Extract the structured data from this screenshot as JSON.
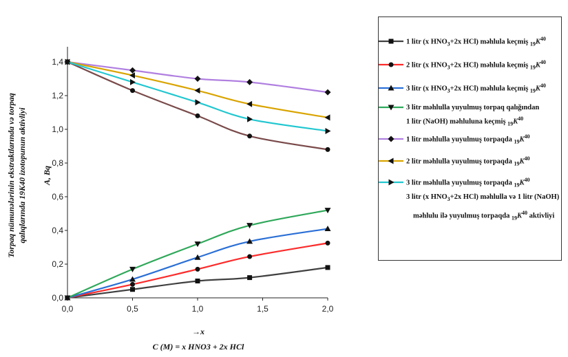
{
  "chart_data": {
    "type": "line",
    "xlabel_arrow": "→x",
    "xlabel_formula": "C (M) = x HNO3 + 2x HCl",
    "ylabel_lines": [
      "Torpaq nümunələrinin ekstraktlarında və torpaq",
      "qalıqlarında 19K40 izotopunun aktivliyi"
    ],
    "ylabel_unit": "A, Bq",
    "x_ticks": [
      "0,0",
      "0,5",
      "1,0",
      "1,5",
      "2,0"
    ],
    "y_ticks": [
      "0,0",
      "0,2",
      "0,4",
      "0,6",
      "0,8",
      "1,0",
      "1,2",
      "1,4"
    ],
    "xlim": [
      0,
      2
    ],
    "ylim": [
      0,
      1.4
    ],
    "x": [
      0,
      0.5,
      1.0,
      1.4,
      2.0
    ],
    "series": [
      {
        "label": "1 litr (x HNO3+2x HCl) məhlula keçmiş 19K40",
        "color": "#404040",
        "marker": "square",
        "values": [
          0.0,
          0.05,
          0.1,
          0.12,
          0.18
        ]
      },
      {
        "label": "2 litr (x HNO3+2x HCl) məhlula keçmiş 19K40",
        "color": "#ff2a2a",
        "marker": "circle",
        "values": [
          0.0,
          0.08,
          0.17,
          0.245,
          0.325
        ]
      },
      {
        "label": "3 litr (x HNO3+2x HCl) məhlula keçmiş 19K40",
        "color": "#2a6fd6",
        "marker": "triangle-up",
        "values": [
          0.0,
          0.11,
          0.24,
          0.335,
          0.41
        ]
      },
      {
        "label": "3 litr məhlulla yuyulmuş torpaq qalığından",
        "label2": "1 litr (NaOH) məhluluna keçmiş 19K40",
        "color": "#2fa85a",
        "marker": "triangle-down",
        "values": [
          0.0,
          0.17,
          0.32,
          0.43,
          0.52
        ]
      },
      {
        "label": "1 litr məhlulla yuyulmuş torpaqda 19K40",
        "color": "#b07fe0",
        "marker": "diamond",
        "values": [
          1.4,
          1.35,
          1.3,
          1.28,
          1.22
        ]
      },
      {
        "label": "2 litr məhlulla yuyulmuş torpaqda 19K40",
        "color": "#d9a400",
        "marker": "triangle-left",
        "values": [
          1.4,
          1.32,
          1.23,
          1.15,
          1.07
        ]
      },
      {
        "label": "3 litr məhlulla yuyulmuş torpaqda 19K40",
        "color": "#22c7d0",
        "marker": "triangle-right",
        "values": [
          1.4,
          1.28,
          1.16,
          1.06,
          0.99
        ]
      },
      {
        "label": "",
        "color": "#7a4a4a",
        "marker": "none",
        "values": [
          1.4,
          1.23,
          1.08,
          0.96,
          0.88
        ]
      }
    ],
    "legend_note_lines": [
      "3 litr (x HNO3+2x HCl) məhlulla və 1 litr (NaOH)",
      "məhlulu ilə yuyulmuş torpaqda 19K40 aktivliyi"
    ],
    "legend_placement": "right",
    "grid": false
  }
}
